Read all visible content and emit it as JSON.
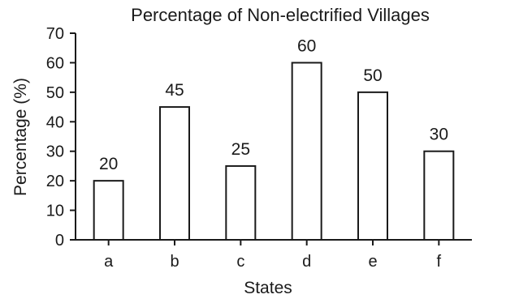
{
  "chart_data": {
    "type": "bar",
    "title": "Percentage of Non-electrified Villages",
    "xlabel": "States",
    "ylabel": "Percentage (%)",
    "categories": [
      "a",
      "b",
      "c",
      "d",
      "e",
      "f"
    ],
    "values": [
      20,
      45,
      25,
      60,
      50,
      30
    ],
    "data_labels": [
      "20",
      "45",
      "25",
      "60",
      "50",
      "30"
    ],
    "yticks": [
      0,
      10,
      20,
      30,
      40,
      50,
      60,
      70
    ],
    "ylim": [
      0,
      70
    ],
    "grid": false,
    "legend": "none",
    "bar_fill": "#ffffff",
    "bar_stroke": "#1a1a1a",
    "text_color": "#1a1a1a"
  }
}
